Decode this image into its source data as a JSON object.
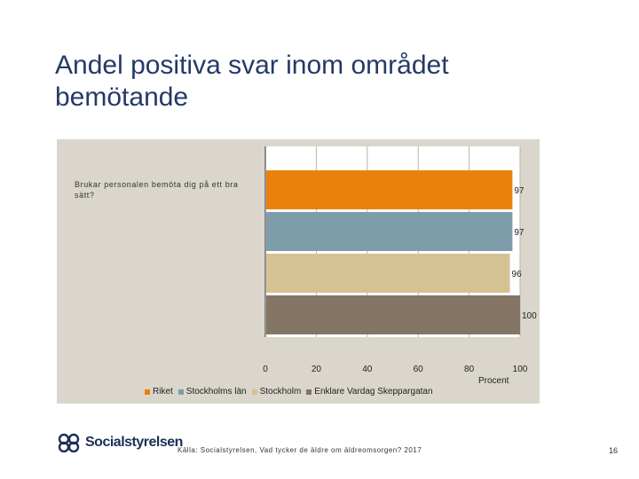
{
  "slide": {
    "title": "Andel positiva svar inom området\nbemötande",
    "source": "Källa: Socialstyrelsen, Vad tycker de äldre om äldreomsorgen? 2017",
    "page_number": "16",
    "logo_text": "Socialstyrelsen"
  },
  "chart_data": {
    "type": "bar",
    "orientation": "horizontal",
    "category": "Brukar personalen bemöta dig på ett bra sätt?",
    "series": [
      {
        "name": "Riket",
        "value": 97,
        "label": "97",
        "color": "#e8820c"
      },
      {
        "name": "Stockholms län",
        "value": 97,
        "label": "97",
        "color": "#7f9caa"
      },
      {
        "name": "Stockholm",
        "value": 96,
        "label": "96",
        "color": "#d6c193"
      },
      {
        "name": "Enklare Vardag Skeppargatan",
        "value": 100,
        "label": "100",
        "color": "#857565"
      }
    ],
    "xlim": [
      0,
      100
    ],
    "xticks": [
      "0",
      "20",
      "40",
      "60",
      "80",
      "100"
    ],
    "xlabel": "Procent",
    "grid": true,
    "legend_position": "bottom"
  }
}
